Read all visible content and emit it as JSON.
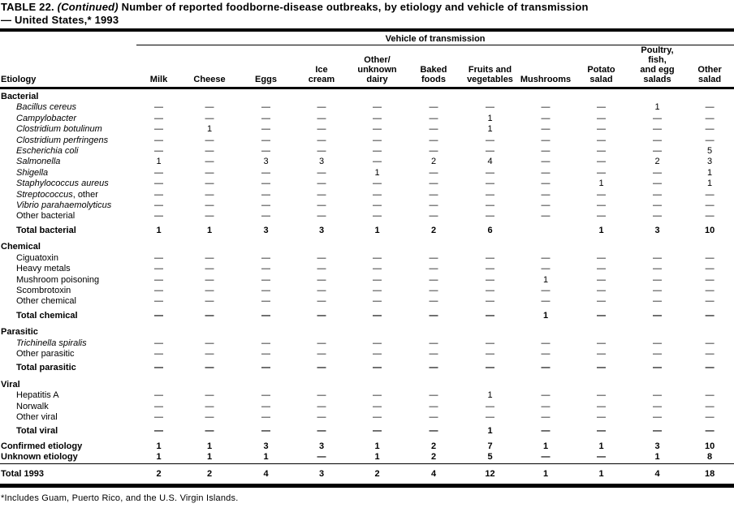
{
  "colors": {
    "text": "#000000",
    "background": "#ffffff"
  },
  "title": {
    "label": "TABLE 22.",
    "continued": "(Continued)",
    "text": "Number of reported foodborne-disease outbreaks, by etiology and vehicle of transmission\n— United States,* 1993"
  },
  "table": {
    "group_header": "Vehicle of transmission",
    "etiology_header": "Etiology",
    "columns": [
      "Milk",
      "Cheese",
      "Eggs",
      "Ice\ncream",
      "Other/\nunknown\ndairy",
      "Baked\nfoods",
      "Fruits and\nvegetables",
      "Mushrooms",
      "Potato\nsalad",
      "Poultry,\nfish,\nand egg\nsalads",
      "Other\nsalad"
    ],
    "rows": [
      {
        "type": "section",
        "first": true,
        "label": "Bacterial",
        "italic": false,
        "cells": []
      },
      {
        "type": "item",
        "label": "Bacillus cereus",
        "italic": true,
        "cells": [
          "—",
          "—",
          "—",
          "—",
          "—",
          "—",
          "—",
          "—",
          "—",
          "1",
          "—"
        ]
      },
      {
        "type": "item",
        "label": "Campylobacter",
        "italic": true,
        "cells": [
          "—",
          "—",
          "—",
          "—",
          "—",
          "—",
          "1",
          "—",
          "—",
          "—",
          "—"
        ]
      },
      {
        "type": "item",
        "label": "Clostridium botulinum",
        "italic": true,
        "cells": [
          "—",
          "1",
          "—",
          "—",
          "—",
          "—",
          "1",
          "—",
          "—",
          "—",
          "—"
        ]
      },
      {
        "type": "item",
        "label": "Clostridium perfringens",
        "italic": true,
        "cells": [
          "—",
          "—",
          "—",
          "—",
          "—",
          "—",
          "—",
          "—",
          "—",
          "—",
          "—"
        ]
      },
      {
        "type": "item",
        "label": "Escherichia coli",
        "italic": true,
        "cells": [
          "—",
          "—",
          "—",
          "—",
          "—",
          "—",
          "—",
          "—",
          "—",
          "—",
          "5"
        ]
      },
      {
        "type": "item",
        "label": "Salmonella",
        "italic": true,
        "cells": [
          "1",
          "—",
          "3",
          "3",
          "—",
          "2",
          "4",
          "—",
          "—",
          "2",
          "3"
        ]
      },
      {
        "type": "item",
        "label": "Shigella",
        "italic": true,
        "cells": [
          "—",
          "—",
          "—",
          "—",
          "1",
          "—",
          "—",
          "—",
          "—",
          "—",
          "1"
        ]
      },
      {
        "type": "item",
        "label": "Staphylococcus aureus",
        "italic": true,
        "cells": [
          "—",
          "—",
          "—",
          "—",
          "—",
          "—",
          "—",
          "—",
          "1",
          "—",
          "1"
        ]
      },
      {
        "type": "item",
        "label": "Streptococcus",
        "italic": true,
        "suffix": ", other",
        "cells": [
          "—",
          "—",
          "—",
          "—",
          "—",
          "—",
          "—",
          "—",
          "—",
          "—",
          "—"
        ]
      },
      {
        "type": "item",
        "label": "Vibrio parahaemolyticus",
        "italic": true,
        "cells": [
          "—",
          "—",
          "—",
          "—",
          "—",
          "—",
          "—",
          "—",
          "—",
          "—",
          "—"
        ]
      },
      {
        "type": "item",
        "label": "Other bacterial",
        "italic": false,
        "cells": [
          "—",
          "—",
          "—",
          "—",
          "—",
          "—",
          "—",
          "—",
          "—",
          "—",
          "—"
        ]
      },
      {
        "type": "total",
        "label": "Total bacterial",
        "italic": false,
        "cells": [
          "1",
          "1",
          "3",
          "3",
          "1",
          "2",
          "6",
          "",
          "1",
          "3",
          "10"
        ]
      },
      {
        "type": "section",
        "label": "Chemical",
        "italic": false,
        "cells": []
      },
      {
        "type": "item",
        "label": "Ciguatoxin",
        "italic": false,
        "cells": [
          "—",
          "—",
          "—",
          "—",
          "—",
          "—",
          "—",
          "—",
          "—",
          "—",
          "—"
        ]
      },
      {
        "type": "item",
        "label": "Heavy metals",
        "italic": false,
        "cells": [
          "—",
          "—",
          "—",
          "—",
          "—",
          "—",
          "—",
          "—",
          "—",
          "—",
          "—"
        ]
      },
      {
        "type": "item",
        "label": "Mushroom poisoning",
        "italic": false,
        "cells": [
          "—",
          "—",
          "—",
          "—",
          "—",
          "—",
          "—",
          "1",
          "—",
          "—",
          "—"
        ]
      },
      {
        "type": "item",
        "label": "Scombrotoxin",
        "italic": false,
        "cells": [
          "—",
          "—",
          "—",
          "—",
          "—",
          "—",
          "—",
          "—",
          "—",
          "—",
          "—"
        ]
      },
      {
        "type": "item",
        "label": "Other chemical",
        "italic": false,
        "cells": [
          "—",
          "—",
          "—",
          "—",
          "—",
          "—",
          "—",
          "—",
          "—",
          "—",
          "—"
        ]
      },
      {
        "type": "total",
        "label": "Total chemical",
        "italic": false,
        "cells": [
          "—",
          "—",
          "—",
          "—",
          "—",
          "—",
          "—",
          "1",
          "—",
          "—",
          "—"
        ]
      },
      {
        "type": "section",
        "label": "Parasitic",
        "italic": false,
        "cells": []
      },
      {
        "type": "item",
        "label": "Trichinella spiralis",
        "italic": true,
        "cells": [
          "—",
          "—",
          "—",
          "—",
          "—",
          "—",
          "—",
          "—",
          "—",
          "—",
          "—"
        ]
      },
      {
        "type": "item",
        "label": "Other parasitic",
        "italic": false,
        "cells": [
          "—",
          "—",
          "—",
          "—",
          "—",
          "—",
          "—",
          "—",
          "—",
          "—",
          "—"
        ]
      },
      {
        "type": "total",
        "label": "Total parasitic",
        "italic": false,
        "cells": [
          "—",
          "—",
          "—",
          "—",
          "—",
          "—",
          "—",
          "—",
          "—",
          "—",
          "—"
        ]
      },
      {
        "type": "section",
        "label": "Viral",
        "italic": false,
        "cells": []
      },
      {
        "type": "item",
        "label": "Hepatitis A",
        "italic": false,
        "cells": [
          "—",
          "—",
          "—",
          "—",
          "—",
          "—",
          "1",
          "—",
          "—",
          "—",
          "—"
        ]
      },
      {
        "type": "item",
        "label": "Norwalk",
        "italic": false,
        "cells": [
          "—",
          "—",
          "—",
          "—",
          "—",
          "—",
          "—",
          "—",
          "—",
          "—",
          "—"
        ]
      },
      {
        "type": "item",
        "label": "Other viral",
        "italic": false,
        "cells": [
          "—",
          "—",
          "—",
          "—",
          "—",
          "—",
          "—",
          "—",
          "—",
          "—",
          "—"
        ]
      },
      {
        "type": "total",
        "label": "Total viral",
        "italic": false,
        "cells": [
          "—",
          "—",
          "—",
          "—",
          "—",
          "—",
          "1",
          "—",
          "—",
          "—",
          "—"
        ]
      },
      {
        "type": "summary",
        "first": true,
        "label": "Confirmed etiology",
        "italic": false,
        "cells": [
          "1",
          "1",
          "3",
          "3",
          "1",
          "2",
          "7",
          "1",
          "1",
          "3",
          "10"
        ]
      },
      {
        "type": "summary",
        "label": "Unknown etiology",
        "italic": false,
        "cells": [
          "1",
          "1",
          "1",
          "—",
          "1",
          "2",
          "5",
          "—",
          "—",
          "1",
          "8"
        ]
      },
      {
        "type": "grand",
        "label": "Total 1993",
        "italic": false,
        "cells": [
          "2",
          "2",
          "4",
          "3",
          "2",
          "4",
          "12",
          "1",
          "1",
          "4",
          "18"
        ]
      }
    ]
  },
  "footnote": "*Includes Guam, Puerto Rico, and the U.S. Virgin Islands."
}
